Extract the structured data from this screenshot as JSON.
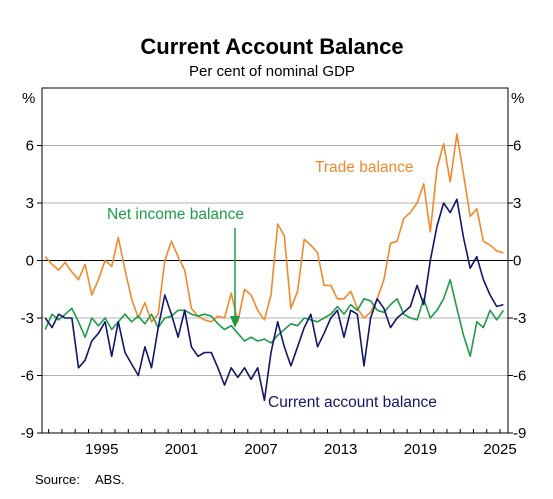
{
  "chart_data": {
    "type": "line",
    "title": "Current Account Balance",
    "subtitle": "Per cent of nominal GDP",
    "y_unit_left": "%",
    "y_unit_right": "%",
    "ylim": [
      -9,
      9
    ],
    "yticks": [
      -9,
      -6,
      -3,
      0,
      3,
      6
    ],
    "ytick_labels": [
      "-9",
      "-6",
      "-3",
      "0",
      "3",
      "6"
    ],
    "xlim": [
      1990.5,
      2025.6
    ],
    "xticks": [
      1995,
      2001,
      2007,
      2013,
      2019,
      2025
    ],
    "xtick_labels": [
      "1995",
      "2001",
      "2007",
      "2013",
      "2019",
      "2025"
    ],
    "grid": true,
    "source_label": "Source:",
    "source_text": "ABS.",
    "series": [
      {
        "name": "Trade balance",
        "color": "#f0892c",
        "x": [
          1990.75,
          1991.25,
          1991.75,
          1992.25,
          1992.75,
          1993.25,
          1993.75,
          1994.25,
          1994.75,
          1995.25,
          1995.75,
          1996.25,
          1996.75,
          1997.25,
          1997.75,
          1998.25,
          1998.75,
          1999.25,
          1999.75,
          2000.25,
          2000.75,
          2001.25,
          2001.75,
          2002.25,
          2002.75,
          2003.25,
          2003.75,
          2004.25,
          2004.75,
          2005.25,
          2005.75,
          2006.25,
          2006.75,
          2007.25,
          2007.75,
          2008.25,
          2008.75,
          2009.25,
          2009.75,
          2010.25,
          2010.75,
          2011.25,
          2011.75,
          2012.25,
          2012.75,
          2013.25,
          2013.75,
          2014.25,
          2014.75,
          2015.25,
          2015.75,
          2016.25,
          2016.75,
          2017.25,
          2017.75,
          2018.25,
          2018.75,
          2019.25,
          2019.75,
          2020.25,
          2020.75,
          2021.25,
          2021.75,
          2022.25,
          2022.75,
          2023.25,
          2023.75,
          2024.25,
          2024.75,
          2025.25
        ],
        "values": [
          0.2,
          -0.2,
          -0.5,
          -0.1,
          -0.6,
          -1.0,
          -0.2,
          -1.8,
          -1.0,
          0.0,
          -0.3,
          1.2,
          -0.5,
          -2.0,
          -3.0,
          -2.2,
          -3.2,
          -2.8,
          0.0,
          1.0,
          0.2,
          -0.5,
          -2.5,
          -2.9,
          -3.1,
          -3.2,
          -2.9,
          -3.0,
          -1.7,
          -3.2,
          -1.5,
          -1.8,
          -2.6,
          -3.1,
          -1.8,
          1.9,
          1.3,
          -2.5,
          -1.6,
          1.1,
          0.8,
          0.4,
          -1.3,
          -1.3,
          -2.0,
          -2.0,
          -1.6,
          -2.5,
          -3.0,
          -2.7,
          -2.0,
          -1.0,
          0.9,
          1.0,
          2.2,
          2.5,
          3.0,
          4.0,
          1.5,
          4.8,
          6.1,
          4.1,
          6.6,
          4.5,
          2.3,
          2.7,
          1.0,
          0.8,
          0.5,
          0.4
        ]
      },
      {
        "name": "Net income balance",
        "color": "#1e9c48",
        "x": [
          1990.75,
          1991.25,
          1991.75,
          1992.25,
          1992.75,
          1993.25,
          1993.75,
          1994.25,
          1994.75,
          1995.25,
          1995.75,
          1996.25,
          1996.75,
          1997.25,
          1997.75,
          1998.25,
          1998.75,
          1999.25,
          1999.75,
          2000.25,
          2000.75,
          2001.25,
          2001.75,
          2002.25,
          2002.75,
          2003.25,
          2003.75,
          2004.25,
          2004.75,
          2005.25,
          2005.75,
          2006.25,
          2006.75,
          2007.25,
          2007.75,
          2008.25,
          2008.75,
          2009.25,
          2009.75,
          2010.25,
          2010.75,
          2011.25,
          2011.75,
          2012.25,
          2012.75,
          2013.25,
          2013.75,
          2014.25,
          2014.75,
          2015.25,
          2015.75,
          2016.25,
          2016.75,
          2017.25,
          2017.75,
          2018.25,
          2018.75,
          2019.25,
          2019.75,
          2020.25,
          2020.75,
          2021.25,
          2021.75,
          2022.25,
          2022.75,
          2023.25,
          2023.75,
          2024.25,
          2024.75,
          2025.25
        ],
        "values": [
          -3.6,
          -2.8,
          -3.1,
          -2.8,
          -2.5,
          -3.2,
          -4.0,
          -3.0,
          -3.4,
          -3.0,
          -3.6,
          -3.2,
          -2.8,
          -3.2,
          -2.9,
          -3.3,
          -2.8,
          -3.5,
          -3.0,
          -2.9,
          -2.6,
          -2.6,
          -2.8,
          -2.9,
          -2.8,
          -2.9,
          -3.3,
          -3.6,
          -3.4,
          -3.8,
          -4.2,
          -4.0,
          -4.2,
          -4.1,
          -4.3,
          -3.9,
          -3.6,
          -3.3,
          -3.4,
          -3.0,
          -3.1,
          -3.2,
          -3.0,
          -2.8,
          -2.4,
          -2.8,
          -2.3,
          -2.6,
          -2.0,
          -2.1,
          -2.6,
          -2.7,
          -2.3,
          -2.0,
          -2.8,
          -3.0,
          -3.1,
          -2.0,
          -3.0,
          -2.6,
          -2.0,
          -1.0,
          -2.5,
          -3.9,
          -5.0,
          -3.2,
          -3.5,
          -2.6,
          -3.1,
          -2.6
        ]
      },
      {
        "name": "Current account balance",
        "color": "#12166a",
        "x": [
          1990.75,
          1991.25,
          1991.75,
          1992.25,
          1992.75,
          1993.25,
          1993.75,
          1994.25,
          1994.75,
          1995.25,
          1995.75,
          1996.25,
          1996.75,
          1997.25,
          1997.75,
          1998.25,
          1998.75,
          1999.25,
          1999.75,
          2000.25,
          2000.75,
          2001.25,
          2001.75,
          2002.25,
          2002.75,
          2003.25,
          2003.75,
          2004.25,
          2004.75,
          2005.25,
          2005.75,
          2006.25,
          2006.75,
          2007.25,
          2007.75,
          2008.25,
          2008.75,
          2009.25,
          2009.75,
          2010.25,
          2010.75,
          2011.25,
          2011.75,
          2012.25,
          2012.75,
          2013.25,
          2013.75,
          2014.25,
          2014.75,
          2015.25,
          2015.75,
          2016.25,
          2016.75,
          2017.25,
          2017.75,
          2018.25,
          2018.75,
          2019.25,
          2019.75,
          2020.25,
          2020.75,
          2021.25,
          2021.75,
          2022.25,
          2022.75,
          2023.25,
          2023.75,
          2024.25,
          2024.75,
          2025.25
        ],
        "values": [
          -3.0,
          -3.5,
          -2.8,
          -3.0,
          -3.0,
          -5.6,
          -5.2,
          -4.2,
          -3.8,
          -3.2,
          -5.0,
          -3.2,
          -4.8,
          -5.4,
          -6.0,
          -4.5,
          -5.6,
          -3.5,
          -1.8,
          -2.8,
          -4.0,
          -2.6,
          -4.5,
          -5.0,
          -4.8,
          -4.8,
          -5.6,
          -6.5,
          -5.6,
          -6.1,
          -5.6,
          -6.2,
          -5.6,
          -7.3,
          -4.8,
          -3.2,
          -4.5,
          -5.5,
          -4.5,
          -3.5,
          -2.8,
          -4.5,
          -3.8,
          -3.0,
          -2.6,
          -4.0,
          -2.6,
          -2.8,
          -5.5,
          -3.0,
          -2.0,
          -2.5,
          -3.5,
          -3.0,
          -2.7,
          -2.4,
          -1.3,
          -2.3,
          0.0,
          1.8,
          3.0,
          2.5,
          3.2,
          1.2,
          -0.4,
          0.2,
          -1.0,
          -1.8,
          -2.4,
          -2.3
        ]
      }
    ],
    "annotations": [
      {
        "text": "Trade balance",
        "series": "Trade balance"
      },
      {
        "text": "Net income balance",
        "series": "Net income balance"
      },
      {
        "text": "Current account balance",
        "series": "Current account balance"
      }
    ]
  }
}
